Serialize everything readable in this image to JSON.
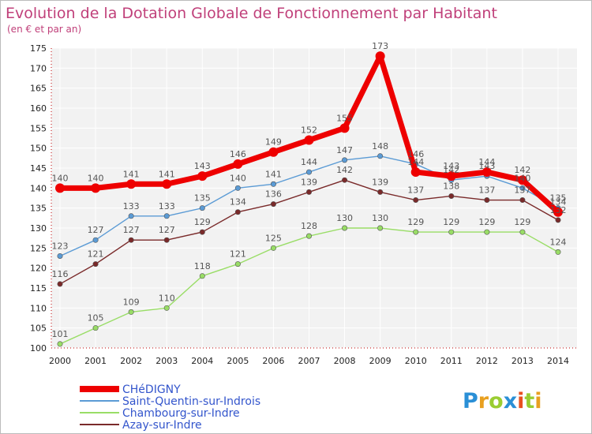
{
  "chart_data": {
    "type": "line",
    "title": "Evolution de la Dotation Globale de Fonctionnement par Habitant",
    "subtitle": "(en € et par an)",
    "x": [
      "2000",
      "2001",
      "2002",
      "2003",
      "2004",
      "2005",
      "2006",
      "2007",
      "2008",
      "2009",
      "2010",
      "2011",
      "2012",
      "2013",
      "2014"
    ],
    "ylim": [
      100,
      175
    ],
    "yticks": [
      100,
      105,
      110,
      115,
      120,
      125,
      130,
      135,
      140,
      145,
      150,
      155,
      160,
      165,
      170,
      175
    ],
    "ytick_labels": [
      "100",
      "105",
      "110",
      "115",
      "120",
      "125",
      "130",
      "135",
      "140",
      "145",
      "150",
      "155",
      "160",
      "165",
      "170",
      "175"
    ],
    "grid": true,
    "series": [
      {
        "name": "CHéDIGNY",
        "color": "#ee0000",
        "values": [
          140,
          140,
          141,
          141,
          143,
          146,
          149,
          152,
          155,
          173,
          144,
          143,
          144,
          142,
          134
        ],
        "value_labels": [
          "140",
          "140",
          "141",
          "141",
          "143",
          "146",
          "149",
          "152",
          "155",
          "173",
          "144",
          "143",
          "144",
          "142",
          "134"
        ]
      },
      {
        "name": "Saint-Quentin-sur-Indrois",
        "color": "#5b9bd5",
        "values": [
          123,
          127,
          133,
          133,
          135,
          140,
          141,
          144,
          147,
          148,
          146,
          142,
          143,
          140,
          135
        ],
        "value_labels": [
          "123",
          "127",
          "133",
          "133",
          "135",
          "140",
          "141",
          "144",
          "147",
          "148",
          "146",
          "142",
          "143",
          "140",
          "135"
        ]
      },
      {
        "name": "Chambourg-sur-Indre",
        "color": "#99dd66",
        "values": [
          101,
          105,
          109,
          110,
          118,
          121,
          125,
          128,
          130,
          130,
          129,
          129,
          129,
          129,
          124
        ],
        "value_labels": [
          "101",
          "105",
          "109",
          "110",
          "118",
          "121",
          "125",
          "128",
          "130",
          "130",
          "129",
          "129",
          "129",
          "129",
          "124"
        ]
      },
      {
        "name": "Azay-sur-Indre",
        "color": "#7a2a2a",
        "values": [
          116,
          121,
          127,
          127,
          129,
          134,
          136,
          139,
          142,
          139,
          137,
          138,
          137,
          137,
          132
        ],
        "value_labels": [
          "116",
          "121",
          "127",
          "127",
          "129",
          "134",
          "136",
          "139",
          "142",
          "139",
          "137",
          "138",
          "137",
          "137",
          "132"
        ]
      }
    ]
  },
  "brand": {
    "letters": [
      "P",
      "r",
      "o",
      "x",
      "i",
      "t",
      "i"
    ],
    "colors": [
      "#2a8fd6",
      "#e8a020",
      "#9acd32",
      "#2a8fd6",
      "#e85020",
      "#9acd32",
      "#e8a020"
    ]
  }
}
